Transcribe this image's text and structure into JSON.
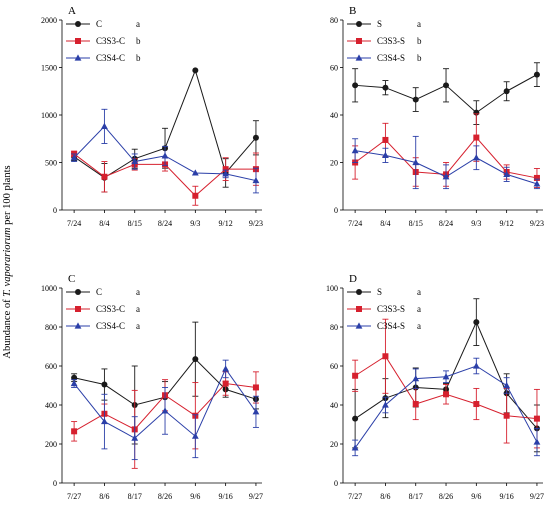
{
  "figure": {
    "ylabel_prefix": "Abundance of ",
    "ylabel_species": "T. vaporariorum",
    "ylabel_suffix": " per 100 plants"
  },
  "colors": {
    "black": "#1a1a1a",
    "red": "#d6202e",
    "blue": "#2b3fa8"
  },
  "chart_data": [
    {
      "panel": "A",
      "type": "line",
      "x": [
        "7/24",
        "8/4",
        "8/15",
        "8/24",
        "9/3",
        "9/12",
        "9/23"
      ],
      "ylim": [
        0,
        2000
      ],
      "yticks": [
        0,
        500,
        1000,
        1500,
        2000
      ],
      "series": [
        {
          "name": "C",
          "letter": "a",
          "color": "black",
          "marker": "circle",
          "values": [
            560,
            340,
            540,
            650,
            1470,
            390,
            760
          ],
          "errors": [
            40,
            150,
            100,
            210,
            0,
            150,
            180
          ]
        },
        {
          "name": "C3S3-C",
          "letter": "b",
          "color": "red",
          "marker": "square",
          "values": [
            590,
            350,
            480,
            480,
            150,
            430,
            430
          ],
          "errors": [
            30,
            160,
            60,
            70,
            100,
            120,
            170
          ]
        },
        {
          "name": "C3S4-C",
          "letter": "b",
          "color": "blue",
          "marker": "triangle",
          "values": [
            550,
            880,
            510,
            570,
            390,
            380,
            310
          ],
          "errors": [
            40,
            180,
            80,
            100,
            0,
            40,
            130
          ]
        }
      ]
    },
    {
      "panel": "B",
      "type": "line",
      "x": [
        "7/24",
        "8/4",
        "8/15",
        "8/24",
        "9/3",
        "9/12",
        "9/23"
      ],
      "ylim": [
        0,
        80
      ],
      "yticks": [
        0,
        20,
        40,
        60,
        80
      ],
      "series": [
        {
          "name": "S",
          "letter": "a",
          "color": "black",
          "marker": "circle",
          "values": [
            52.5,
            51.5,
            46.5,
            52.5,
            41,
            50,
            57
          ],
          "errors": [
            7,
            3,
            5,
            7,
            5,
            4,
            5
          ]
        },
        {
          "name": "C3S3-S",
          "letter": "b",
          "color": "red",
          "marker": "square",
          "values": [
            20,
            29.5,
            16,
            15,
            30.5,
            16,
            13.5
          ],
          "errors": [
            7,
            7,
            6,
            5,
            10,
            3,
            4
          ]
        },
        {
          "name": "C3S4-S",
          "letter": "b",
          "color": "blue",
          "marker": "triangle",
          "values": [
            25,
            23,
            20,
            14,
            22,
            15,
            11
          ],
          "errors": [
            5,
            3,
            11,
            5,
            5,
            3,
            2
          ]
        }
      ]
    },
    {
      "panel": "C",
      "type": "line",
      "x": [
        "7/27",
        "8/6",
        "8/17",
        "8/26",
        "9/6",
        "9/16",
        "9/27"
      ],
      "ylim": [
        0,
        1000
      ],
      "yticks": [
        0,
        200,
        400,
        600,
        800,
        1000
      ],
      "series": [
        {
          "name": "C",
          "letter": "a",
          "color": "black",
          "marker": "circle",
          "values": [
            540,
            505,
            400,
            440,
            635,
            480,
            430
          ],
          "errors": [
            20,
            80,
            200,
            80,
            190,
            40,
            50
          ]
        },
        {
          "name": "C3S3-C",
          "letter": "a",
          "color": "red",
          "marker": "square",
          "values": [
            265,
            355,
            275,
            450,
            345,
            510,
            490
          ],
          "errors": [
            50,
            50,
            200,
            80,
            170,
            60,
            80
          ]
        },
        {
          "name": "C3S4-C",
          "letter": "a",
          "color": "blue",
          "marker": "triangle",
          "values": [
            510,
            315,
            230,
            370,
            240,
            585,
            365
          ],
          "errors": [
            20,
            140,
            110,
            120,
            110,
            45,
            80
          ]
        }
      ]
    },
    {
      "panel": "D",
      "type": "line",
      "x": [
        "7/27",
        "8/6",
        "8/17",
        "8/26",
        "9/6",
        "9/16",
        "9/27"
      ],
      "ylim": [
        0,
        100
      ],
      "yticks": [
        0,
        20,
        40,
        60,
        80,
        100
      ],
      "series": [
        {
          "name": "S",
          "letter": "a",
          "color": "black",
          "marker": "circle",
          "values": [
            33,
            43.5,
            49,
            48,
            82.5,
            46,
            28
          ],
          "errors": [
            15,
            10,
            10,
            3,
            12,
            10,
            12
          ]
        },
        {
          "name": "C3S3-S",
          "letter": "a",
          "color": "red",
          "marker": "square",
          "values": [
            55,
            65,
            40.5,
            45.5,
            40.5,
            34.5,
            33
          ],
          "errors": [
            8,
            19,
            8,
            5,
            8,
            14,
            15
          ]
        },
        {
          "name": "C3S4-S",
          "letter": "a",
          "color": "blue",
          "marker": "triangle",
          "values": [
            18,
            40,
            53.5,
            54.5,
            60,
            50,
            21
          ],
          "errors": [
            4,
            4,
            5,
            3,
            4,
            4,
            7
          ]
        }
      ]
    }
  ]
}
